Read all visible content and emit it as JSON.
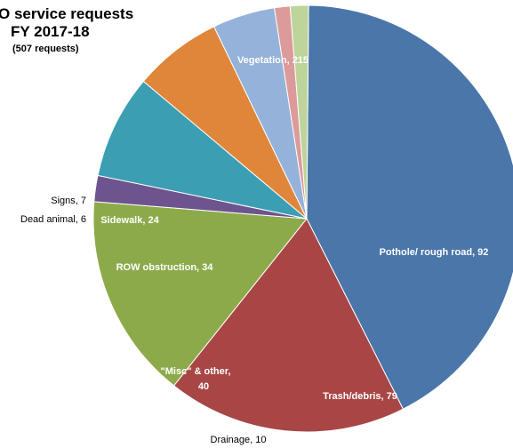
{
  "chart_data": {
    "type": "pie",
    "title_line1": "O service requests",
    "title_line2": "FY 2017-18",
    "subtitle": "(507 requests)",
    "slices": [
      {
        "label": "Vegetation",
        "value": 215,
        "color": "#4a76aa",
        "text_color": "#ffffff",
        "display": "Vegetation, 215"
      },
      {
        "label": "Pothole/ rough road",
        "value": 92,
        "color": "#a84645",
        "text_color": "#ffffff",
        "display": "Pothole/ rough road, 92"
      },
      {
        "label": "Trash/debris",
        "value": 79,
        "color": "#8daa4b",
        "text_color": "#ffffff",
        "display": "Trash/debris, 79"
      },
      {
        "label": "Drainage",
        "value": 10,
        "color": "#6d548f",
        "text_color": "#000000",
        "display": "Drainage, 10"
      },
      {
        "label": "\"Misc\" & other",
        "value": 40,
        "color": "#3c9eb3",
        "text_color": "#ffffff",
        "display": "\"Misc\" & other,",
        "display2": "40"
      },
      {
        "label": "ROW obstruction",
        "value": 34,
        "color": "#df863b",
        "text_color": "#ffffff",
        "display": "ROW obstruction, 34"
      },
      {
        "label": "Sidewalk",
        "value": 24,
        "color": "#95b2da",
        "text_color": "#ffffff",
        "display": "Sidewalk, 24"
      },
      {
        "label": "Dead animal",
        "value": 6,
        "color": "#dc9a9a",
        "text_color": "#000000",
        "display": "Dead animal, 6"
      },
      {
        "label": "Signs",
        "value": 7,
        "color": "#bdd49a",
        "text_color": "#000000",
        "display": "Signs, 7"
      }
    ]
  }
}
